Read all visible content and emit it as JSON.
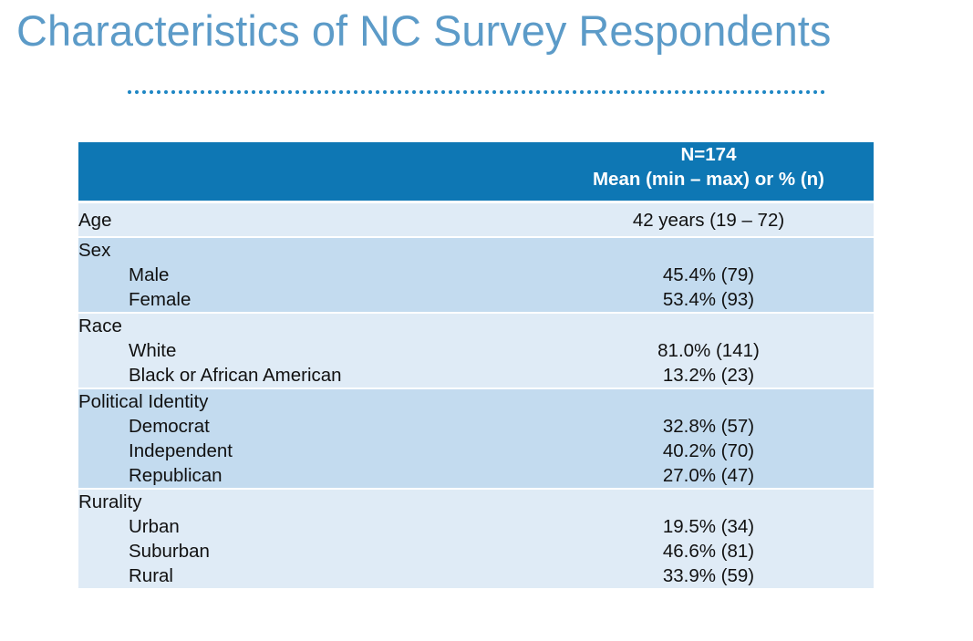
{
  "page": {
    "title": "Characteristics of NC Survey Respondents"
  },
  "table": {
    "header": {
      "line1": "N=174",
      "line2": "Mean (min – max) or % (n)"
    },
    "age": {
      "label": "Age",
      "value": "42 years (19 – 72)"
    },
    "sex": {
      "label": "Sex",
      "rows": [
        {
          "label": "Male",
          "value": "45.4% (79)"
        },
        {
          "label": "Female",
          "value": "53.4% (93)"
        }
      ]
    },
    "race": {
      "label": "Race",
      "rows": [
        {
          "label": "White",
          "value": "81.0% (141)"
        },
        {
          "label": "Black or African American",
          "value": "13.2% (23)"
        }
      ]
    },
    "political_identity": {
      "label": "Political Identity",
      "rows": [
        {
          "label": "Democrat",
          "value": "32.8% (57)"
        },
        {
          "label": "Independent",
          "value": "40.2% (70)"
        },
        {
          "label": "Republican",
          "value": "27.0% (47)"
        }
      ]
    },
    "rurality": {
      "label": "Rurality",
      "rows": [
        {
          "label": "Urban",
          "value": "19.5% (34)"
        },
        {
          "label": "Suburban",
          "value": "46.6% (81)"
        },
        {
          "label": "Rural",
          "value": "33.9% (59)"
        }
      ]
    }
  },
  "colors": {
    "title": "#5c9bc8",
    "header_fill": "#0e77b4",
    "row_light": "#dfebf6",
    "row_dark": "#c3dbef",
    "dotted_rule": "#1d86c4"
  }
}
